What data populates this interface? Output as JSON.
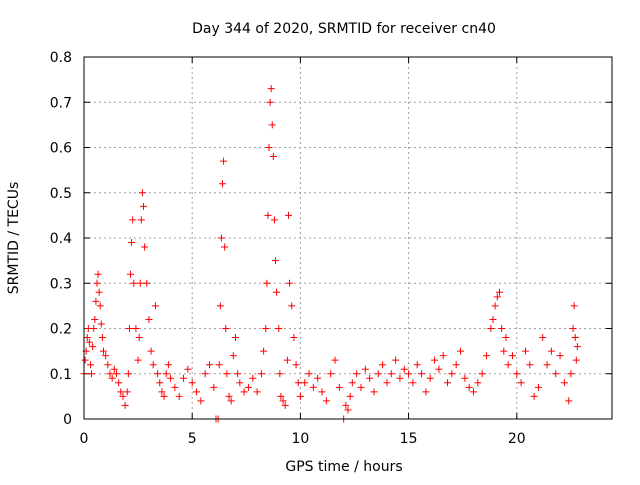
{
  "chart_data": {
    "type": "scatter",
    "title": "Day 344 of 2020, SRMTID for receiver cn40",
    "xlabel": "GPS time / hours",
    "ylabel": "SRMTID / TECUs",
    "xlim": [
      0,
      24.4
    ],
    "ylim": [
      0,
      0.8
    ],
    "xticks": [
      0,
      5,
      10,
      15,
      20
    ],
    "xtick_labels": [
      "0",
      "5",
      "10",
      "15",
      "20"
    ],
    "yticks": [
      0,
      0.1,
      0.2,
      0.3,
      0.4,
      0.5,
      0.6,
      0.7,
      0.8
    ],
    "ytick_labels": [
      "0",
      "0.1",
      "0.2",
      "0.3",
      "0.4",
      "0.5",
      "0.6",
      "0.7",
      "0.8"
    ],
    "grid": true,
    "marker": "plus",
    "color": "#ff0000",
    "series": [
      {
        "name": "SRMTID",
        "points": [
          [
            0.0,
            0.1
          ],
          [
            0.05,
            0.13
          ],
          [
            0.1,
            0.15
          ],
          [
            0.15,
            0.18
          ],
          [
            0.2,
            0.2
          ],
          [
            0.25,
            0.17
          ],
          [
            0.3,
            0.12
          ],
          [
            0.35,
            0.1
          ],
          [
            0.4,
            0.16
          ],
          [
            0.45,
            0.2
          ],
          [
            0.5,
            0.22
          ],
          [
            0.55,
            0.26
          ],
          [
            0.6,
            0.3
          ],
          [
            0.65,
            0.32
          ],
          [
            0.7,
            0.28
          ],
          [
            0.75,
            0.25
          ],
          [
            0.8,
            0.21
          ],
          [
            0.85,
            0.18
          ],
          [
            0.9,
            0.15
          ],
          [
            1.0,
            0.14
          ],
          [
            1.1,
            0.12
          ],
          [
            1.2,
            0.1
          ],
          [
            1.3,
            0.09
          ],
          [
            1.4,
            0.11
          ],
          [
            1.5,
            0.1
          ],
          [
            1.6,
            0.08
          ],
          [
            1.7,
            0.06
          ],
          [
            1.8,
            0.05
          ],
          [
            1.9,
            0.03
          ],
          [
            2.0,
            0.06
          ],
          [
            2.05,
            0.1
          ],
          [
            2.1,
            0.2
          ],
          [
            2.15,
            0.32
          ],
          [
            2.2,
            0.39
          ],
          [
            2.25,
            0.44
          ],
          [
            2.3,
            0.3
          ],
          [
            2.4,
            0.2
          ],
          [
            2.5,
            0.13
          ],
          [
            2.55,
            0.18
          ],
          [
            2.6,
            0.3
          ],
          [
            2.65,
            0.44
          ],
          [
            2.7,
            0.5
          ],
          [
            2.75,
            0.47
          ],
          [
            2.8,
            0.38
          ],
          [
            2.9,
            0.3
          ],
          [
            3.0,
            0.22
          ],
          [
            3.1,
            0.15
          ],
          [
            3.2,
            0.12
          ],
          [
            3.3,
            0.25
          ],
          [
            3.4,
            0.1
          ],
          [
            3.5,
            0.08
          ],
          [
            3.6,
            0.06
          ],
          [
            3.7,
            0.05
          ],
          [
            3.8,
            0.1
          ],
          [
            3.9,
            0.12
          ],
          [
            4.0,
            0.09
          ],
          [
            4.2,
            0.07
          ],
          [
            4.4,
            0.05
          ],
          [
            4.6,
            0.09
          ],
          [
            4.8,
            0.11
          ],
          [
            5.0,
            0.08
          ],
          [
            5.2,
            0.06
          ],
          [
            5.4,
            0.04
          ],
          [
            5.6,
            0.1
          ],
          [
            5.8,
            0.12
          ],
          [
            6.0,
            0.07
          ],
          [
            6.1,
            0.0
          ],
          [
            6.2,
            0.0
          ],
          [
            6.25,
            0.12
          ],
          [
            6.3,
            0.25
          ],
          [
            6.35,
            0.4
          ],
          [
            6.4,
            0.52
          ],
          [
            6.45,
            0.57
          ],
          [
            6.5,
            0.38
          ],
          [
            6.55,
            0.2
          ],
          [
            6.6,
            0.1
          ],
          [
            6.7,
            0.05
          ],
          [
            6.8,
            0.04
          ],
          [
            6.9,
            0.14
          ],
          [
            7.0,
            0.18
          ],
          [
            7.1,
            0.1
          ],
          [
            7.2,
            0.08
          ],
          [
            7.4,
            0.06
          ],
          [
            7.6,
            0.07
          ],
          [
            7.8,
            0.09
          ],
          [
            8.0,
            0.06
          ],
          [
            8.2,
            0.1
          ],
          [
            8.3,
            0.15
          ],
          [
            8.4,
            0.2
          ],
          [
            8.45,
            0.3
          ],
          [
            8.5,
            0.45
          ],
          [
            8.55,
            0.6
          ],
          [
            8.6,
            0.7
          ],
          [
            8.65,
            0.73
          ],
          [
            8.7,
            0.65
          ],
          [
            8.75,
            0.58
          ],
          [
            8.8,
            0.44
          ],
          [
            8.85,
            0.35
          ],
          [
            8.9,
            0.28
          ],
          [
            9.0,
            0.2
          ],
          [
            9.05,
            0.1
          ],
          [
            9.1,
            0.05
          ],
          [
            9.2,
            0.04
          ],
          [
            9.3,
            0.03
          ],
          [
            9.4,
            0.13
          ],
          [
            9.45,
            0.45
          ],
          [
            9.5,
            0.3
          ],
          [
            9.6,
            0.25
          ],
          [
            9.7,
            0.18
          ],
          [
            9.8,
            0.12
          ],
          [
            9.9,
            0.08
          ],
          [
            10.0,
            0.05
          ],
          [
            10.2,
            0.08
          ],
          [
            10.4,
            0.1
          ],
          [
            10.6,
            0.07
          ],
          [
            10.8,
            0.09
          ],
          [
            11.0,
            0.06
          ],
          [
            11.2,
            0.04
          ],
          [
            11.4,
            0.1
          ],
          [
            11.6,
            0.13
          ],
          [
            11.8,
            0.07
          ],
          [
            12.0,
            0.0
          ],
          [
            12.1,
            0.03
          ],
          [
            12.2,
            0.02
          ],
          [
            12.3,
            0.05
          ],
          [
            12.4,
            0.08
          ],
          [
            12.6,
            0.1
          ],
          [
            12.8,
            0.07
          ],
          [
            13.0,
            0.11
          ],
          [
            13.2,
            0.09
          ],
          [
            13.4,
            0.06
          ],
          [
            13.6,
            0.1
          ],
          [
            13.8,
            0.12
          ],
          [
            14.0,
            0.08
          ],
          [
            14.2,
            0.1
          ],
          [
            14.4,
            0.13
          ],
          [
            14.6,
            0.09
          ],
          [
            14.8,
            0.11
          ],
          [
            15.0,
            0.1
          ],
          [
            15.2,
            0.08
          ],
          [
            15.4,
            0.12
          ],
          [
            15.6,
            0.1
          ],
          [
            15.8,
            0.06
          ],
          [
            16.0,
            0.09
          ],
          [
            16.2,
            0.13
          ],
          [
            16.4,
            0.11
          ],
          [
            16.6,
            0.14
          ],
          [
            16.8,
            0.08
          ],
          [
            17.0,
            0.1
          ],
          [
            17.2,
            0.12
          ],
          [
            17.4,
            0.15
          ],
          [
            17.6,
            0.09
          ],
          [
            17.8,
            0.07
          ],
          [
            18.0,
            0.06
          ],
          [
            18.2,
            0.08
          ],
          [
            18.4,
            0.1
          ],
          [
            18.6,
            0.14
          ],
          [
            18.8,
            0.2
          ],
          [
            18.9,
            0.22
          ],
          [
            19.0,
            0.25
          ],
          [
            19.1,
            0.27
          ],
          [
            19.2,
            0.28
          ],
          [
            19.3,
            0.2
          ],
          [
            19.4,
            0.15
          ],
          [
            19.5,
            0.18
          ],
          [
            19.6,
            0.12
          ],
          [
            19.8,
            0.14
          ],
          [
            20.0,
            0.1
          ],
          [
            20.2,
            0.08
          ],
          [
            20.4,
            0.15
          ],
          [
            20.6,
            0.12
          ],
          [
            20.8,
            0.05
          ],
          [
            21.0,
            0.07
          ],
          [
            21.2,
            0.18
          ],
          [
            21.4,
            0.12
          ],
          [
            21.6,
            0.15
          ],
          [
            21.8,
            0.1
          ],
          [
            22.0,
            0.14
          ],
          [
            22.2,
            0.08
          ],
          [
            22.4,
            0.04
          ],
          [
            22.5,
            0.1
          ],
          [
            22.6,
            0.2
          ],
          [
            22.65,
            0.25
          ],
          [
            22.7,
            0.18
          ],
          [
            22.75,
            0.13
          ],
          [
            22.8,
            0.16
          ]
        ]
      }
    ]
  }
}
